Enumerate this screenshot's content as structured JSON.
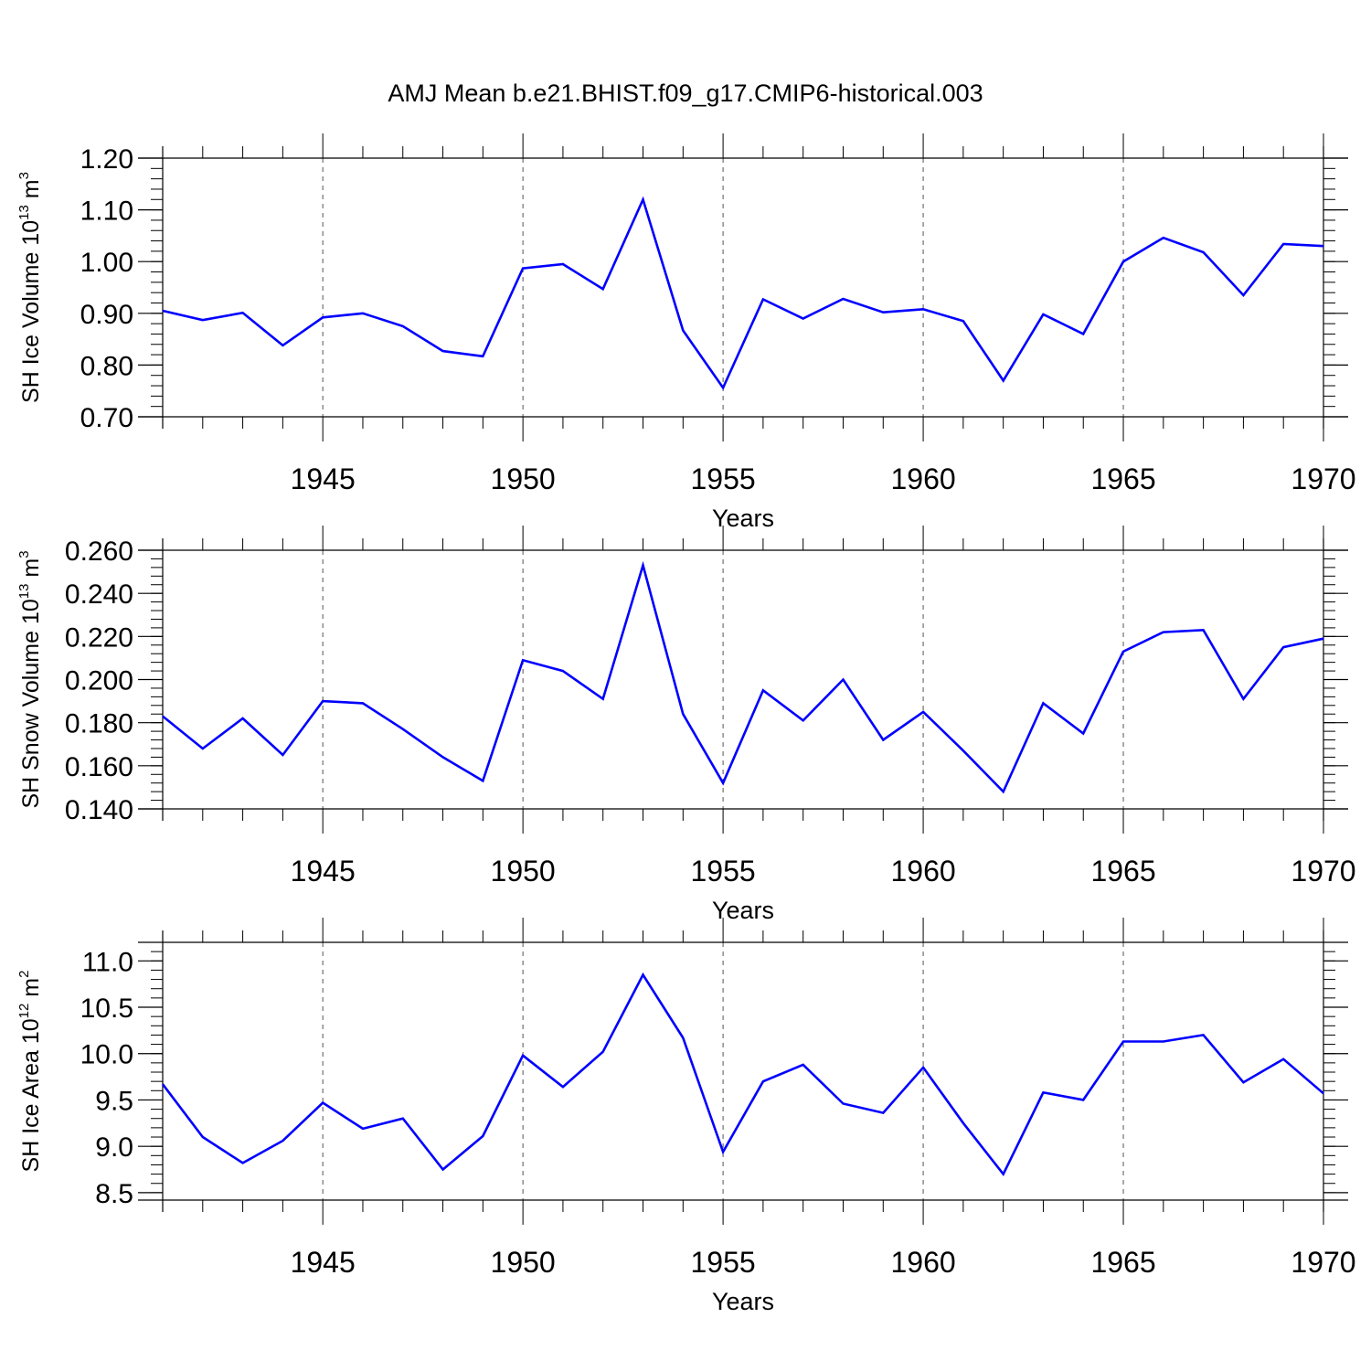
{
  "title": "AMJ Mean b.e21.BHIST.f09_g17.CMIP6-historical.003",
  "style": {
    "line_color": "#0000ff",
    "axis_color": "#000000",
    "grid_color": "#555555"
  },
  "chart_data": [
    {
      "type": "line",
      "xlabel": "Years",
      "ylabel": {
        "text": "SH Ice Volume 10",
        "exponent": "13",
        "unit": " m",
        "unit_exponent": "3"
      },
      "xlim": [
        1941,
        1970
      ],
      "ylim": [
        0.7,
        1.2
      ],
      "xticks": [
        "1945",
        "1950",
        "1955",
        "1960",
        "1965",
        "1970"
      ],
      "yticks": [
        "0.70",
        "0.80",
        "0.90",
        "1.00",
        "1.10",
        "1.20"
      ],
      "grid": "vertical dashed at major x ticks",
      "x": [
        1941,
        1942,
        1943,
        1944,
        1945,
        1946,
        1947,
        1948,
        1949,
        1950,
        1951,
        1952,
        1953,
        1954,
        1955,
        1956,
        1957,
        1958,
        1959,
        1960,
        1961,
        1962,
        1963,
        1964,
        1965,
        1966,
        1967,
        1968,
        1969,
        1970
      ],
      "series": [
        {
          "values": [
            0.905,
            0.887,
            0.901,
            0.838,
            0.892,
            0.9,
            0.875,
            0.827,
            0.817,
            0.987,
            0.995,
            0.947,
            1.12,
            0.867,
            0.756,
            0.927,
            0.89,
            0.928,
            0.902,
            0.908,
            0.885,
            0.77,
            0.898,
            0.86,
            1.0,
            1.046,
            1.018,
            0.935,
            1.034,
            1.03
          ]
        }
      ]
    },
    {
      "type": "line",
      "xlabel": "Years",
      "ylabel": {
        "text": "SH Snow Volume 10",
        "exponent": "13",
        "unit": " m",
        "unit_exponent": "3"
      },
      "xlim": [
        1941,
        1970
      ],
      "ylim": [
        0.14,
        0.26
      ],
      "xticks": [
        "1945",
        "1950",
        "1955",
        "1960",
        "1965",
        "1970"
      ],
      "yticks": [
        "0.140",
        "0.160",
        "0.180",
        "0.200",
        "0.220",
        "0.240",
        "0.260"
      ],
      "grid": "vertical dashed at major x ticks",
      "x": [
        1941,
        1942,
        1943,
        1944,
        1945,
        1946,
        1947,
        1948,
        1949,
        1950,
        1951,
        1952,
        1953,
        1954,
        1955,
        1956,
        1957,
        1958,
        1959,
        1960,
        1961,
        1962,
        1963,
        1964,
        1965,
        1966,
        1967,
        1968,
        1969,
        1970
      ],
      "series": [
        {
          "values": [
            0.183,
            0.168,
            0.182,
            0.165,
            0.19,
            0.189,
            0.177,
            0.164,
            0.153,
            0.209,
            0.204,
            0.191,
            0.253,
            0.184,
            0.152,
            0.195,
            0.181,
            0.2,
            0.172,
            0.185,
            0.167,
            0.148,
            0.189,
            0.175,
            0.213,
            0.222,
            0.223,
            0.191,
            0.215,
            0.219
          ]
        }
      ]
    },
    {
      "type": "line",
      "xlabel": "Years",
      "ylabel": {
        "text": "SH Ice Area 10",
        "exponent": "12",
        "unit": " m",
        "unit_exponent": "2"
      },
      "xlim": [
        1941,
        1970
      ],
      "ylim": [
        8.42,
        11.2
      ],
      "xticks": [
        "1945",
        "1950",
        "1955",
        "1960",
        "1965",
        "1970"
      ],
      "yticks": [
        "8.5",
        "9.0",
        "9.5",
        "10.0",
        "10.5",
        "11.0"
      ],
      "grid": "vertical dashed at major x ticks",
      "x": [
        1941,
        1942,
        1943,
        1944,
        1945,
        1946,
        1947,
        1948,
        1949,
        1950,
        1951,
        1952,
        1953,
        1954,
        1955,
        1956,
        1957,
        1958,
        1959,
        1960,
        1961,
        1962,
        1963,
        1964,
        1965,
        1966,
        1967,
        1968,
        1969,
        1970
      ],
      "series": [
        {
          "values": [
            9.67,
            9.1,
            8.82,
            9.06,
            9.47,
            9.19,
            9.3,
            8.75,
            9.11,
            9.98,
            9.64,
            10.02,
            10.85,
            10.17,
            8.94,
            9.7,
            9.88,
            9.46,
            9.36,
            9.85,
            9.25,
            8.7,
            9.58,
            9.5,
            10.13,
            10.13,
            10.2,
            9.69,
            9.94,
            9.57
          ]
        }
      ]
    }
  ]
}
